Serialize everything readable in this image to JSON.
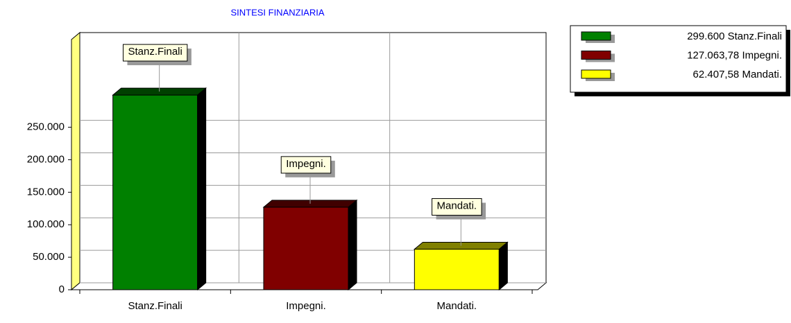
{
  "chart_data": {
    "type": "bar3d",
    "title": "SINTESI FINANZIARIA",
    "categories": [
      "Stanz.Finali",
      "Impegni.",
      "Mandati."
    ],
    "values": [
      299600,
      127063.78,
      62407.58
    ],
    "value_labels": [
      "299.600",
      "127.063,78",
      "62.407,58"
    ],
    "colors": [
      "#008000",
      "#800000",
      "#ffff00"
    ],
    "ylim": [
      0,
      385000
    ],
    "yticks": [
      0,
      {
        "value": 50000,
        "label": "50.000"
      },
      {
        "value": 100000,
        "label": "100.000"
      },
      {
        "value": 150000,
        "label": "150.000"
      },
      {
        "value": 200000,
        "label": "200.000"
      },
      {
        "value": 250000,
        "label": "250.000"
      }
    ],
    "grid": true,
    "legend": "top-right"
  }
}
